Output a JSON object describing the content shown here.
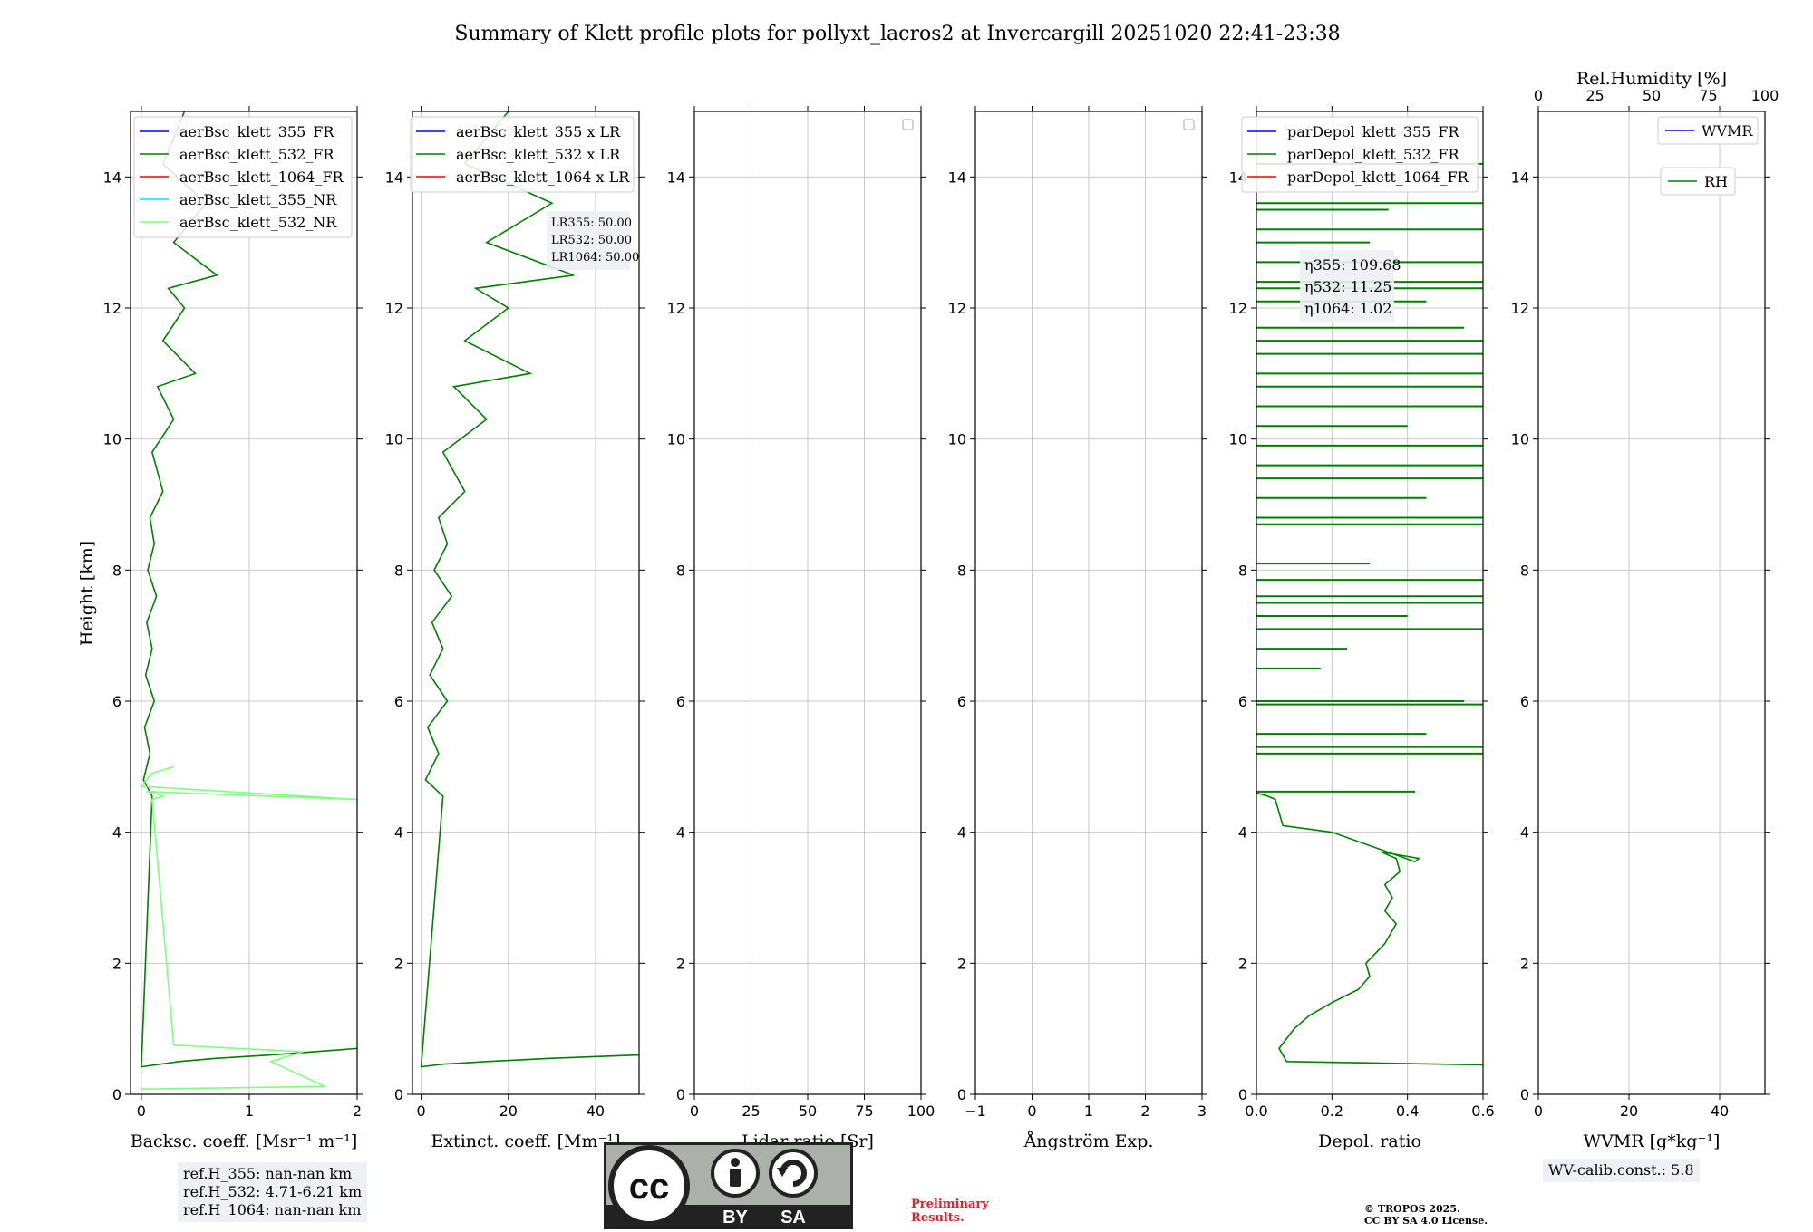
{
  "title": "Summary of Klett profile plots for pollyxt_lacros2 at Invercargill 20251020 22:41-23:38",
  "colors": {
    "c355": "#0000ff",
    "c532": "#008000",
    "c1064": "#ff0000",
    "c355nr": "#00e5e5",
    "c532nr": "#7fff7f"
  },
  "chart_data": [
    {
      "type": "line",
      "id": "backscatter",
      "xlabel": "Backsc. coeff. [Msr⁻¹ m⁻¹]",
      "ylabel": "Height [km]",
      "xlim": [
        -0.1,
        2
      ],
      "ylim": [
        0,
        15
      ],
      "xticks": [
        "0",
        "1",
        "2"
      ],
      "yticks": [
        "0",
        "2",
        "4",
        "6",
        "8",
        "10",
        "12",
        "14"
      ],
      "legend": [
        "aerBsc_klett_355_FR",
        "aerBsc_klett_532_FR",
        "aerBsc_klett_1064_FR",
        "aerBsc_klett_355_NR",
        "aerBsc_klett_532_NR"
      ],
      "legend_position": "top-right",
      "series": [
        {
          "name": "aerBsc_klett_532_FR",
          "color": "#008000",
          "x": [
            2.0,
            1.2,
            0.7,
            0.35,
            0.0,
            0.1,
            0.02,
            0.08,
            0.03,
            0.12,
            0.04,
            0.1,
            0.05,
            0.14,
            0.06,
            0.12,
            0.08,
            0.2,
            0.1,
            0.3,
            0.15,
            0.5,
            0.2,
            0.4,
            0.25,
            0.7,
            0.3,
            0.6,
            0.2,
            0.4
          ],
          "y": [
            0.7,
            0.6,
            0.55,
            0.5,
            0.42,
            4.55,
            4.8,
            5.2,
            5.6,
            6.0,
            6.4,
            6.8,
            7.2,
            7.6,
            8.0,
            8.4,
            8.8,
            9.2,
            9.8,
            10.3,
            10.8,
            11.0,
            11.5,
            12.0,
            12.3,
            12.5,
            13.0,
            13.6,
            14.2,
            15.0
          ]
        },
        {
          "name": "aerBsc_klett_532_NR",
          "color": "#7fff7f",
          "x": [
            0.0,
            1.7,
            1.2,
            1.5,
            0.3,
            0.1,
            0.2,
            0.05,
            2.0,
            0.0,
            0.1,
            0.3
          ],
          "y": [
            0.08,
            0.12,
            0.5,
            0.65,
            0.75,
            4.5,
            4.55,
            4.62,
            4.5,
            4.7,
            4.9,
            5.0
          ]
        }
      ]
    },
    {
      "type": "line",
      "id": "extinction",
      "xlabel": "Extinct. coeff. [Mm⁻¹]",
      "ylabel": "",
      "xlim": [
        -2,
        50
      ],
      "ylim": [
        0,
        15
      ],
      "xticks": [
        "0",
        "20",
        "40"
      ],
      "yticks": [
        "0",
        "2",
        "4",
        "6",
        "8",
        "10",
        "12",
        "14"
      ],
      "legend": [
        "aerBsc_klett_355 x LR",
        "aerBsc_klett_532 x LR",
        "aerBsc_klett_1064 x LR"
      ],
      "legend_position": "top-right",
      "annotation": [
        "LR355: 50.00",
        "LR532: 50.00",
        "LR1064: 50.00"
      ],
      "series": [
        {
          "name": "aerBsc_klett_532 x LR",
          "color": "#008000",
          "x": [
            50,
            30,
            15,
            5,
            0,
            5,
            1,
            4,
            1.5,
            6,
            2,
            5,
            2.5,
            7,
            3,
            6,
            4,
            10,
            5,
            15,
            7.5,
            25,
            10,
            20,
            12.5,
            35,
            15,
            30,
            10,
            20
          ],
          "y": [
            0.6,
            0.55,
            0.5,
            0.46,
            0.42,
            4.55,
            4.8,
            5.2,
            5.6,
            6.0,
            6.4,
            6.8,
            7.2,
            7.6,
            8.0,
            8.4,
            8.8,
            9.2,
            9.8,
            10.3,
            10.8,
            11.0,
            11.5,
            12.0,
            12.3,
            12.5,
            13.0,
            13.6,
            14.2,
            15.0
          ]
        }
      ]
    },
    {
      "type": "line",
      "id": "lidar-ratio",
      "xlabel": "Lidar ratio [Sr]",
      "ylabel": "",
      "xlim": [
        0,
        100
      ],
      "ylim": [
        0,
        15
      ],
      "xticks": [
        "0",
        "25",
        "50",
        "75",
        "100"
      ],
      "yticks": [
        "0",
        "2",
        "4",
        "6",
        "8",
        "10",
        "12",
        "14"
      ],
      "series": []
    },
    {
      "type": "line",
      "id": "angstrom",
      "xlabel": "Ångström Exp.",
      "ylabel": "",
      "xlim": [
        -1,
        3
      ],
      "ylim": [
        0,
        15
      ],
      "xticks": [
        "−1",
        "0",
        "1",
        "2",
        "3"
      ],
      "yticks": [
        "0",
        "2",
        "4",
        "6",
        "8",
        "10",
        "12",
        "14"
      ],
      "series": []
    },
    {
      "type": "line",
      "id": "depol",
      "xlabel": "Depol. ratio",
      "ylabel": "",
      "xlim": [
        0,
        0.6
      ],
      "ylim": [
        0,
        15
      ],
      "xticks": [
        "0.0",
        "0.2",
        "0.4",
        "0.6"
      ],
      "yticks": [
        "0",
        "2",
        "4",
        "6",
        "8",
        "10",
        "12",
        "14"
      ],
      "legend": [
        "parDepol_klett_355_FR",
        "parDepol_klett_532_FR",
        "parDepol_klett_1064_FR"
      ],
      "legend_position": "top-right",
      "annotation": [
        "η355: 109.68",
        "η532: 11.25",
        "η1064: 1.02"
      ],
      "series": [
        {
          "name": "parDepol_klett_532_FR",
          "color": "#008000",
          "x": [
            0.6,
            0.08,
            0.06,
            0.1,
            0.14,
            0.2,
            0.27,
            0.3,
            0.29,
            0.34,
            0.37,
            0.34,
            0.36,
            0.34,
            0.38,
            0.37,
            0.33,
            0.43,
            0.42,
            0.2,
            0.07,
            0.06,
            0.05,
            0.03,
            0.0
          ],
          "y": [
            0.45,
            0.5,
            0.7,
            1.0,
            1.2,
            1.4,
            1.6,
            1.8,
            2.0,
            2.3,
            2.6,
            2.8,
            3.0,
            3.2,
            3.4,
            3.6,
            3.7,
            3.6,
            3.55,
            4.0,
            4.1,
            4.3,
            4.5,
            4.55,
            4.6
          ]
        }
      ],
      "spikes": [
        {
          "y": 4.62,
          "x": 0.42
        },
        {
          "y": 5.2,
          "x": 0.6
        },
        {
          "y": 5.3,
          "x": 0.6
        },
        {
          "y": 5.5,
          "x": 0.45
        },
        {
          "y": 5.95,
          "x": 0.6
        },
        {
          "y": 6.0,
          "x": 0.55
        },
        {
          "y": 6.5,
          "x": 0.17
        },
        {
          "y": 6.8,
          "x": 0.24
        },
        {
          "y": 7.1,
          "x": 0.6
        },
        {
          "y": 7.3,
          "x": 0.4
        },
        {
          "y": 7.5,
          "x": 0.6
        },
        {
          "y": 7.6,
          "x": 0.6
        },
        {
          "y": 7.85,
          "x": 0.6
        },
        {
          "y": 8.1,
          "x": 0.3
        },
        {
          "y": 8.7,
          "x": 0.6
        },
        {
          "y": 8.8,
          "x": 0.6
        },
        {
          "y": 9.1,
          "x": 0.45
        },
        {
          "y": 9.4,
          "x": 0.6
        },
        {
          "y": 9.6,
          "x": 0.6
        },
        {
          "y": 9.9,
          "x": 0.6
        },
        {
          "y": 10.2,
          "x": 0.4
        },
        {
          "y": 10.5,
          "x": 0.6
        },
        {
          "y": 10.8,
          "x": 0.6
        },
        {
          "y": 11.0,
          "x": 0.6
        },
        {
          "y": 11.3,
          "x": 0.6
        },
        {
          "y": 11.5,
          "x": 0.6
        },
        {
          "y": 11.7,
          "x": 0.55
        },
        {
          "y": 12.1,
          "x": 0.45
        },
        {
          "y": 12.3,
          "x": 0.6
        },
        {
          "y": 12.4,
          "x": 0.6
        },
        {
          "y": 12.7,
          "x": 0.6
        },
        {
          "y": 13.0,
          "x": 0.3
        },
        {
          "y": 13.2,
          "x": 0.6
        },
        {
          "y": 13.5,
          "x": 0.35
        },
        {
          "y": 13.6,
          "x": 0.6
        },
        {
          "y": 14.2,
          "x": 0.6
        }
      ]
    },
    {
      "type": "line",
      "id": "wvmr",
      "xlabel": "WVMR [g*kg⁻¹]",
      "ylabel": "",
      "xlim": [
        0,
        50
      ],
      "ylim": [
        0,
        15
      ],
      "xticks": [
        "0",
        "20",
        "40"
      ],
      "yticks": [
        "0",
        "2",
        "4",
        "6",
        "8",
        "10",
        "12",
        "14"
      ],
      "top_axis": {
        "label": "Rel.Humidity [%]",
        "xlim": [
          0,
          100
        ],
        "xticks": [
          "0",
          "25",
          "50",
          "75",
          "100"
        ]
      },
      "legend": [
        "WVMR",
        "RH"
      ],
      "legend_position": "top-right",
      "series": []
    }
  ],
  "ref_heights": [
    "ref.H_355: nan-nan km",
    "ref.H_532: 4.71-6.21 km",
    "ref.H_1064: nan-nan km"
  ],
  "wv_calib": "WV-calib.const.: 5.8",
  "preliminary": [
    "Preliminary",
    "Results."
  ],
  "copyright": [
    "© TROPOS 2025.",
    "CC BY SA 4.0 License."
  ],
  "license_badge": {
    "by": "BY",
    "sa": "SA"
  }
}
